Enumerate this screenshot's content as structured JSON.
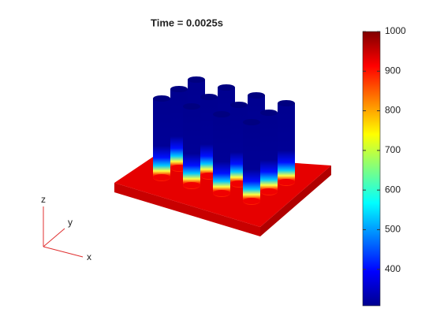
{
  "chart_data": {
    "type": "surface3d",
    "title": "Time = 0.0025s",
    "colorbar": {
      "clim": [
        308,
        1000
      ],
      "ticks": [
        400,
        500,
        600,
        700,
        800,
        900,
        1000
      ]
    },
    "axis_labels": {
      "x": "x",
      "y": "y",
      "z": "z"
    }
  }
}
